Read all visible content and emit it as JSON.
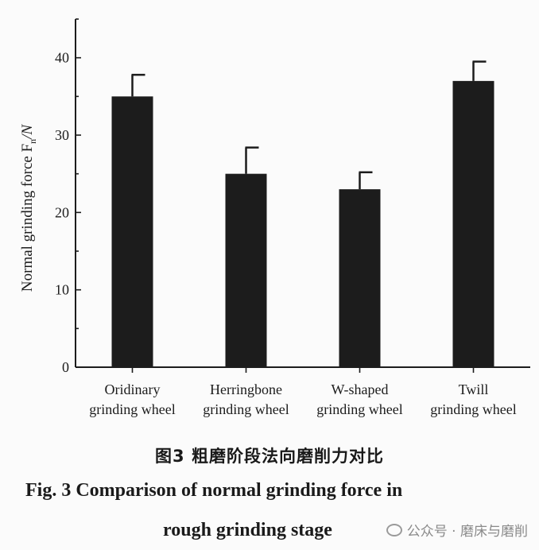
{
  "chart_data": {
    "type": "bar",
    "categories": [
      [
        "Oridinary",
        "grinding wheel"
      ],
      [
        "Herringbone",
        "grinding wheel"
      ],
      [
        "W-shaped",
        "grinding wheel"
      ],
      [
        "Twill",
        "grinding wheel"
      ]
    ],
    "values": [
      35,
      25,
      23,
      37
    ],
    "errors": [
      2.8,
      3.4,
      2.2,
      2.5
    ],
    "ylabel": "Normal grinding force F",
    "ylabel_sub": "n",
    "ylabel_unit": "/N",
    "ylim": [
      0,
      45
    ],
    "yticks": [
      "0",
      "10",
      "20",
      "30",
      "40"
    ],
    "ytick_values": [
      0,
      10,
      20,
      30,
      40
    ],
    "grid": false,
    "bar_color": "#1c1c1c"
  },
  "caption": {
    "cn": "图3  粗磨阶段法向磨削力对比",
    "en_line1": "Fig. 3  Comparison of normal grinding force in",
    "en_line2": "rough grinding stage"
  },
  "watermark": {
    "text": "公众号 · 磨床与磨削",
    "icon": "wechat-icon"
  }
}
